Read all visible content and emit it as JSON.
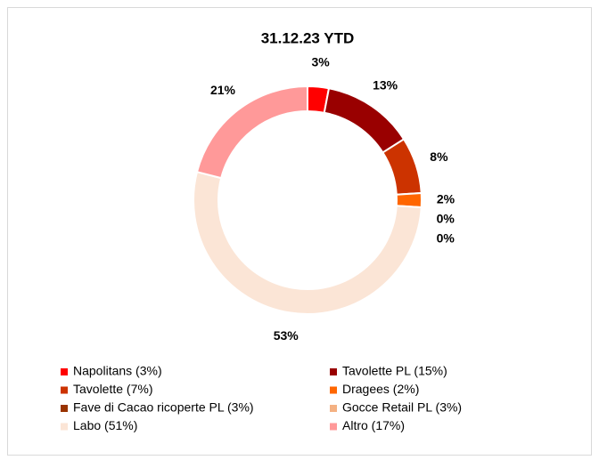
{
  "chart_data": {
    "type": "donut",
    "title": "31.12.23 YTD",
    "categories": [
      "Napolitans (3%)",
      "Tavolette PL (15%)",
      "Tavolette (7%)",
      "Dragees (2%)",
      "Fave di Cacao ricoperte PL (3%)",
      "Gocce Retail PL (3%)",
      "Labo (51%)",
      "Altro (17%)"
    ],
    "values": [
      3,
      13,
      8,
      2,
      0,
      0,
      53,
      21
    ],
    "value_labels": [
      "3%",
      "13%",
      "8%",
      "2%",
      "0%",
      "0%",
      "53%",
      "21%"
    ],
    "colors": [
      "#ff0000",
      "#990000",
      "#cc3300",
      "#ff6600",
      "#993300",
      "#f4b183",
      "#fbe5d6",
      "#ff9999"
    ],
    "legend": "bottom"
  }
}
